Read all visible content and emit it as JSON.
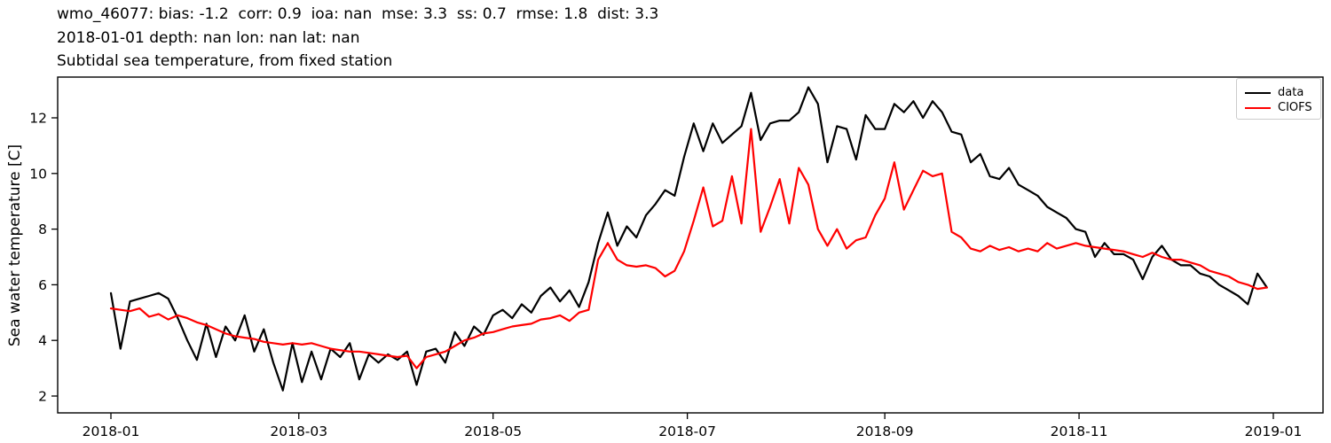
{
  "figure": {
    "title_line1": "wmo_46077: bias: -1.2  corr: 0.9  ioa: nan  mse: 3.3  ss: 0.7  rmse: 1.8  dist: 3.3",
    "title_line2": "2018-01-01 depth: nan lon: nan lat: nan",
    "title_line3": "Subtidal sea temperature, from fixed station",
    "background_color": "#ffffff"
  },
  "chart_data": {
    "type": "line",
    "title": "Subtidal sea temperature, from fixed station",
    "xlabel": "",
    "ylabel": "Sea water temperature [C]",
    "grid": false,
    "legend_position": "upper right",
    "y_ticks": [
      2,
      4,
      6,
      8,
      10,
      12
    ],
    "ylim": [
      1.35,
      13.5
    ],
    "x_tick_labels": [
      "2018-01",
      "2018-03",
      "2018-05",
      "2018-07",
      "2018-09",
      "2018-11",
      "2019-01"
    ],
    "x_tick_days": [
      0,
      59,
      120,
      181,
      243,
      304,
      365
    ],
    "xlim_days": [
      -17,
      381
    ],
    "x_start_date": "2018-01-01",
    "x_step_days": 3,
    "n_points": 122,
    "series": [
      {
        "name": "data",
        "color": "#000000",
        "values": [
          5.7,
          3.7,
          5.4,
          5.5,
          5.6,
          5.7,
          5.5,
          4.8,
          4.0,
          3.3,
          4.6,
          3.4,
          4.5,
          4.0,
          4.9,
          3.6,
          4.4,
          3.2,
          2.2,
          3.9,
          2.5,
          3.6,
          2.6,
          3.7,
          3.4,
          3.9,
          2.6,
          3.5,
          3.2,
          3.5,
          3.3,
          3.6,
          2.4,
          3.6,
          3.7,
          3.2,
          4.3,
          3.8,
          4.5,
          4.2,
          4.9,
          5.1,
          4.8,
          5.3,
          5.0,
          5.6,
          5.9,
          5.4,
          5.8,
          5.2,
          6.1,
          7.5,
          8.6,
          7.4,
          8.1,
          7.7,
          8.5,
          8.9,
          9.4,
          9.2,
          10.6,
          11.8,
          10.8,
          11.8,
          11.1,
          11.4,
          11.7,
          12.9,
          11.2,
          11.8,
          11.9,
          11.9,
          12.2,
          13.1,
          12.5,
          10.4,
          11.7,
          11.6,
          10.5,
          12.1,
          11.6,
          11.6,
          12.5,
          12.2,
          12.6,
          12.0,
          12.6,
          12.2,
          11.5,
          11.4,
          10.4,
          10.7,
          9.9,
          9.8,
          10.2,
          9.6,
          9.4,
          9.2,
          8.8,
          8.6,
          8.4,
          8.0,
          7.9,
          7.0,
          7.5,
          7.1,
          7.1,
          6.9,
          6.2,
          7.0,
          7.4,
          6.9,
          6.7,
          6.7,
          6.4,
          6.3,
          6.0,
          5.8,
          5.6,
          5.3,
          6.4,
          5.9
        ]
      },
      {
        "name": "CIOFS",
        "color": "#ff0000",
        "values": [
          5.15,
          5.1,
          5.05,
          5.15,
          4.85,
          4.95,
          4.75,
          4.9,
          4.8,
          4.65,
          4.55,
          4.4,
          4.25,
          4.15,
          4.1,
          4.05,
          3.95,
          3.9,
          3.85,
          3.9,
          3.85,
          3.9,
          3.8,
          3.7,
          3.65,
          3.6,
          3.6,
          3.55,
          3.5,
          3.45,
          3.4,
          3.45,
          3.0,
          3.4,
          3.5,
          3.6,
          3.8,
          4.0,
          4.1,
          4.25,
          4.3,
          4.4,
          4.5,
          4.55,
          4.6,
          4.75,
          4.8,
          4.9,
          4.7,
          5.0,
          5.1,
          6.9,
          7.5,
          6.9,
          6.7,
          6.65,
          6.7,
          6.6,
          6.3,
          6.5,
          7.2,
          8.3,
          9.5,
          8.1,
          8.3,
          9.9,
          8.2,
          11.6,
          7.9,
          8.8,
          9.8,
          8.2,
          10.2,
          9.6,
          8.0,
          7.4,
          8.0,
          7.3,
          7.6,
          7.7,
          8.5,
          9.1,
          10.4,
          8.7,
          9.4,
          10.1,
          9.9,
          10.0,
          7.9,
          7.7,
          7.3,
          7.2,
          7.4,
          7.25,
          7.35,
          7.2,
          7.3,
          7.2,
          7.5,
          7.3,
          7.4,
          7.5,
          7.4,
          7.35,
          7.3,
          7.25,
          7.2,
          7.1,
          7.0,
          7.15,
          7.0,
          6.9,
          6.9,
          6.8,
          6.7,
          6.5,
          6.4,
          6.3,
          6.1,
          6.0,
          5.85,
          5.9
        ]
      }
    ]
  }
}
